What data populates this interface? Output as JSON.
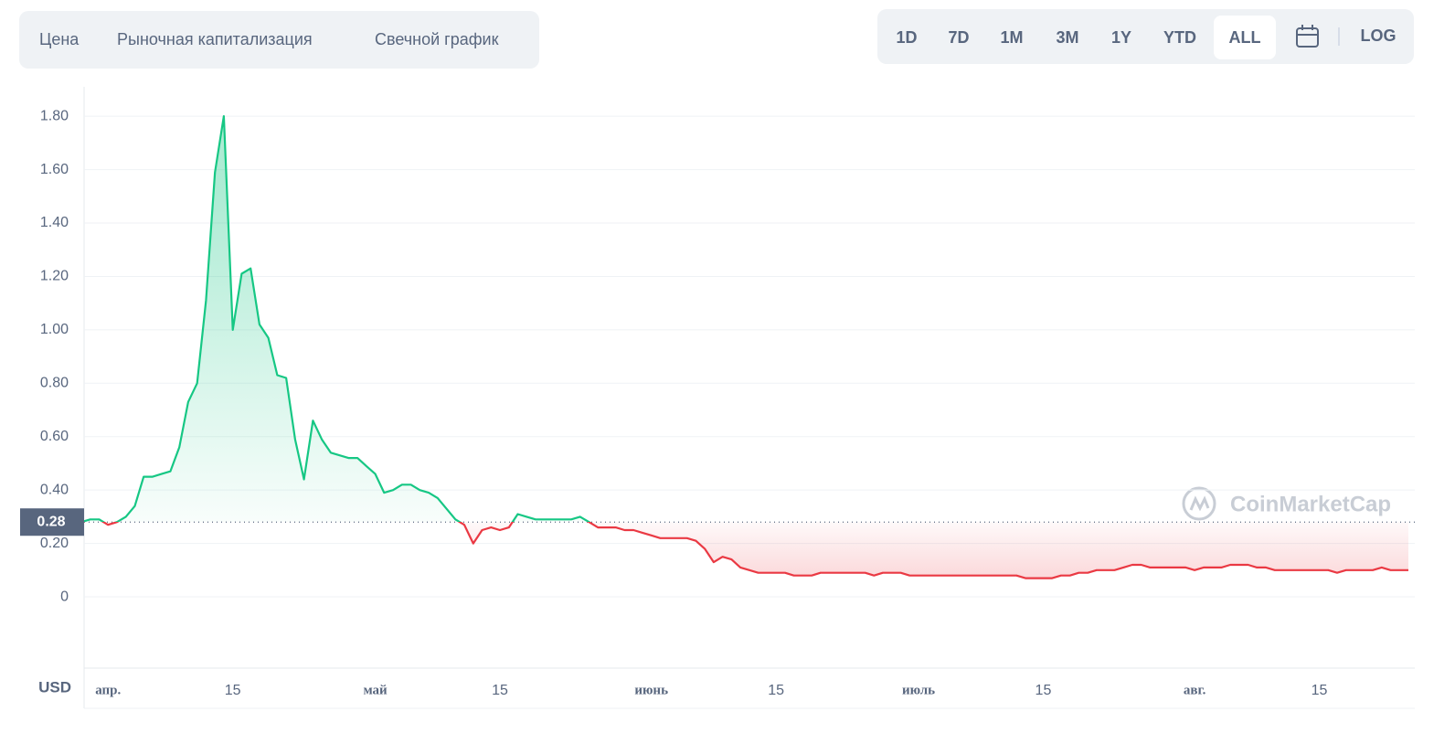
{
  "tabs": [
    "Цена",
    "Рыночная капитализация",
    "Свечной график"
  ],
  "ranges": [
    "1D",
    "7D",
    "1M",
    "3M",
    "1Y",
    "YTD",
    "ALL"
  ],
  "active_range": 6,
  "log_button": "LOG",
  "watermark": "CoinMarketCap",
  "chart_data": {
    "type": "line",
    "y_unit": "USD",
    "current_price": 0.28,
    "up_color": "#16c784",
    "down_color": "#ea3943",
    "grid": true,
    "ylim": [
      -0.26,
      1.91
    ],
    "yticks": [
      0,
      {
        "value": 0.2,
        "label": "0.20"
      },
      {
        "value": 0.4,
        "label": "0.40"
      },
      {
        "value": 0.6,
        "label": "0.60"
      },
      {
        "value": 0.8,
        "label": "0.80"
      },
      {
        "value": 1.0,
        "label": "1.00"
      },
      {
        "value": 1.2,
        "label": "1.20"
      },
      {
        "value": 1.4,
        "label": "1.40"
      },
      {
        "value": 1.6,
        "label": "1.60"
      },
      {
        "value": 1.8,
        "label": "1.80"
      }
    ],
    "categories": [
      null,
      null,
      null,
      "апр.",
      null,
      null,
      null,
      null,
      null,
      null,
      null,
      null,
      null,
      null,
      null,
      null,
      null,
      "15",
      null,
      null,
      null,
      null,
      null,
      null,
      null,
      null,
      null,
      null,
      null,
      null,
      null,
      null,
      null,
      "май",
      null,
      null,
      null,
      null,
      null,
      null,
      null,
      null,
      null,
      null,
      null,
      null,
      null,
      "15",
      null,
      null,
      null,
      null,
      null,
      null,
      null,
      null,
      null,
      null,
      null,
      null,
      null,
      null,
      null,
      null,
      "июнь",
      null,
      null,
      null,
      null,
      null,
      null,
      null,
      null,
      null,
      null,
      null,
      null,
      null,
      "15",
      null,
      null,
      null,
      null,
      null,
      null,
      null,
      null,
      null,
      null,
      null,
      null,
      null,
      null,
      null,
      "июль",
      null,
      null,
      null,
      null,
      null,
      null,
      null,
      null,
      null,
      null,
      null,
      null,
      null,
      "15",
      null,
      null,
      null,
      null,
      null,
      null,
      null,
      null,
      null,
      null,
      null,
      null,
      null,
      null,
      null,
      null,
      "авг.",
      null,
      null,
      null,
      null,
      null,
      null,
      null,
      null,
      null,
      null,
      null,
      null,
      null,
      "15",
      null,
      null,
      null,
      null,
      null,
      null,
      null,
      null,
      null,
      null
    ],
    "values": [
      0.28,
      0.29,
      0.29,
      0.27,
      0.28,
      0.3,
      0.34,
      0.45,
      0.45,
      0.46,
      0.47,
      0.56,
      0.73,
      0.8,
      1.11,
      1.59,
      1.8,
      1.0,
      1.21,
      1.23,
      1.02,
      0.97,
      0.83,
      0.82,
      0.59,
      0.44,
      0.66,
      0.59,
      0.54,
      0.53,
      0.52,
      0.52,
      0.49,
      0.46,
      0.39,
      0.4,
      0.42,
      0.42,
      0.4,
      0.39,
      0.37,
      0.33,
      0.29,
      0.27,
      0.2,
      0.25,
      0.26,
      0.25,
      0.26,
      0.31,
      0.3,
      0.29,
      0.29,
      0.29,
      0.29,
      0.29,
      0.3,
      0.28,
      0.26,
      0.26,
      0.26,
      0.25,
      0.25,
      0.24,
      0.23,
      0.22,
      0.22,
      0.22,
      0.22,
      0.21,
      0.18,
      0.13,
      0.15,
      0.14,
      0.11,
      0.1,
      0.09,
      0.09,
      0.09,
      0.09,
      0.08,
      0.08,
      0.08,
      0.09,
      0.09,
      0.09,
      0.09,
      0.09,
      0.09,
      0.08,
      0.09,
      0.09,
      0.09,
      0.08,
      0.08,
      0.08,
      0.08,
      0.08,
      0.08,
      0.08,
      0.08,
      0.08,
      0.08,
      0.08,
      0.08,
      0.08,
      0.07,
      0.07,
      0.07,
      0.07,
      0.08,
      0.08,
      0.09,
      0.09,
      0.1,
      0.1,
      0.1,
      0.11,
      0.12,
      0.12,
      0.11,
      0.11,
      0.11,
      0.11,
      0.11,
      0.1,
      0.11,
      0.11,
      0.11,
      0.12,
      0.12,
      0.12,
      0.11,
      0.11,
      0.1,
      0.1,
      0.1,
      0.1,
      0.1,
      0.1,
      0.1,
      0.09,
      0.1,
      0.1,
      0.1,
      0.1,
      0.11,
      0.1,
      0.1,
      0.1
    ]
  }
}
